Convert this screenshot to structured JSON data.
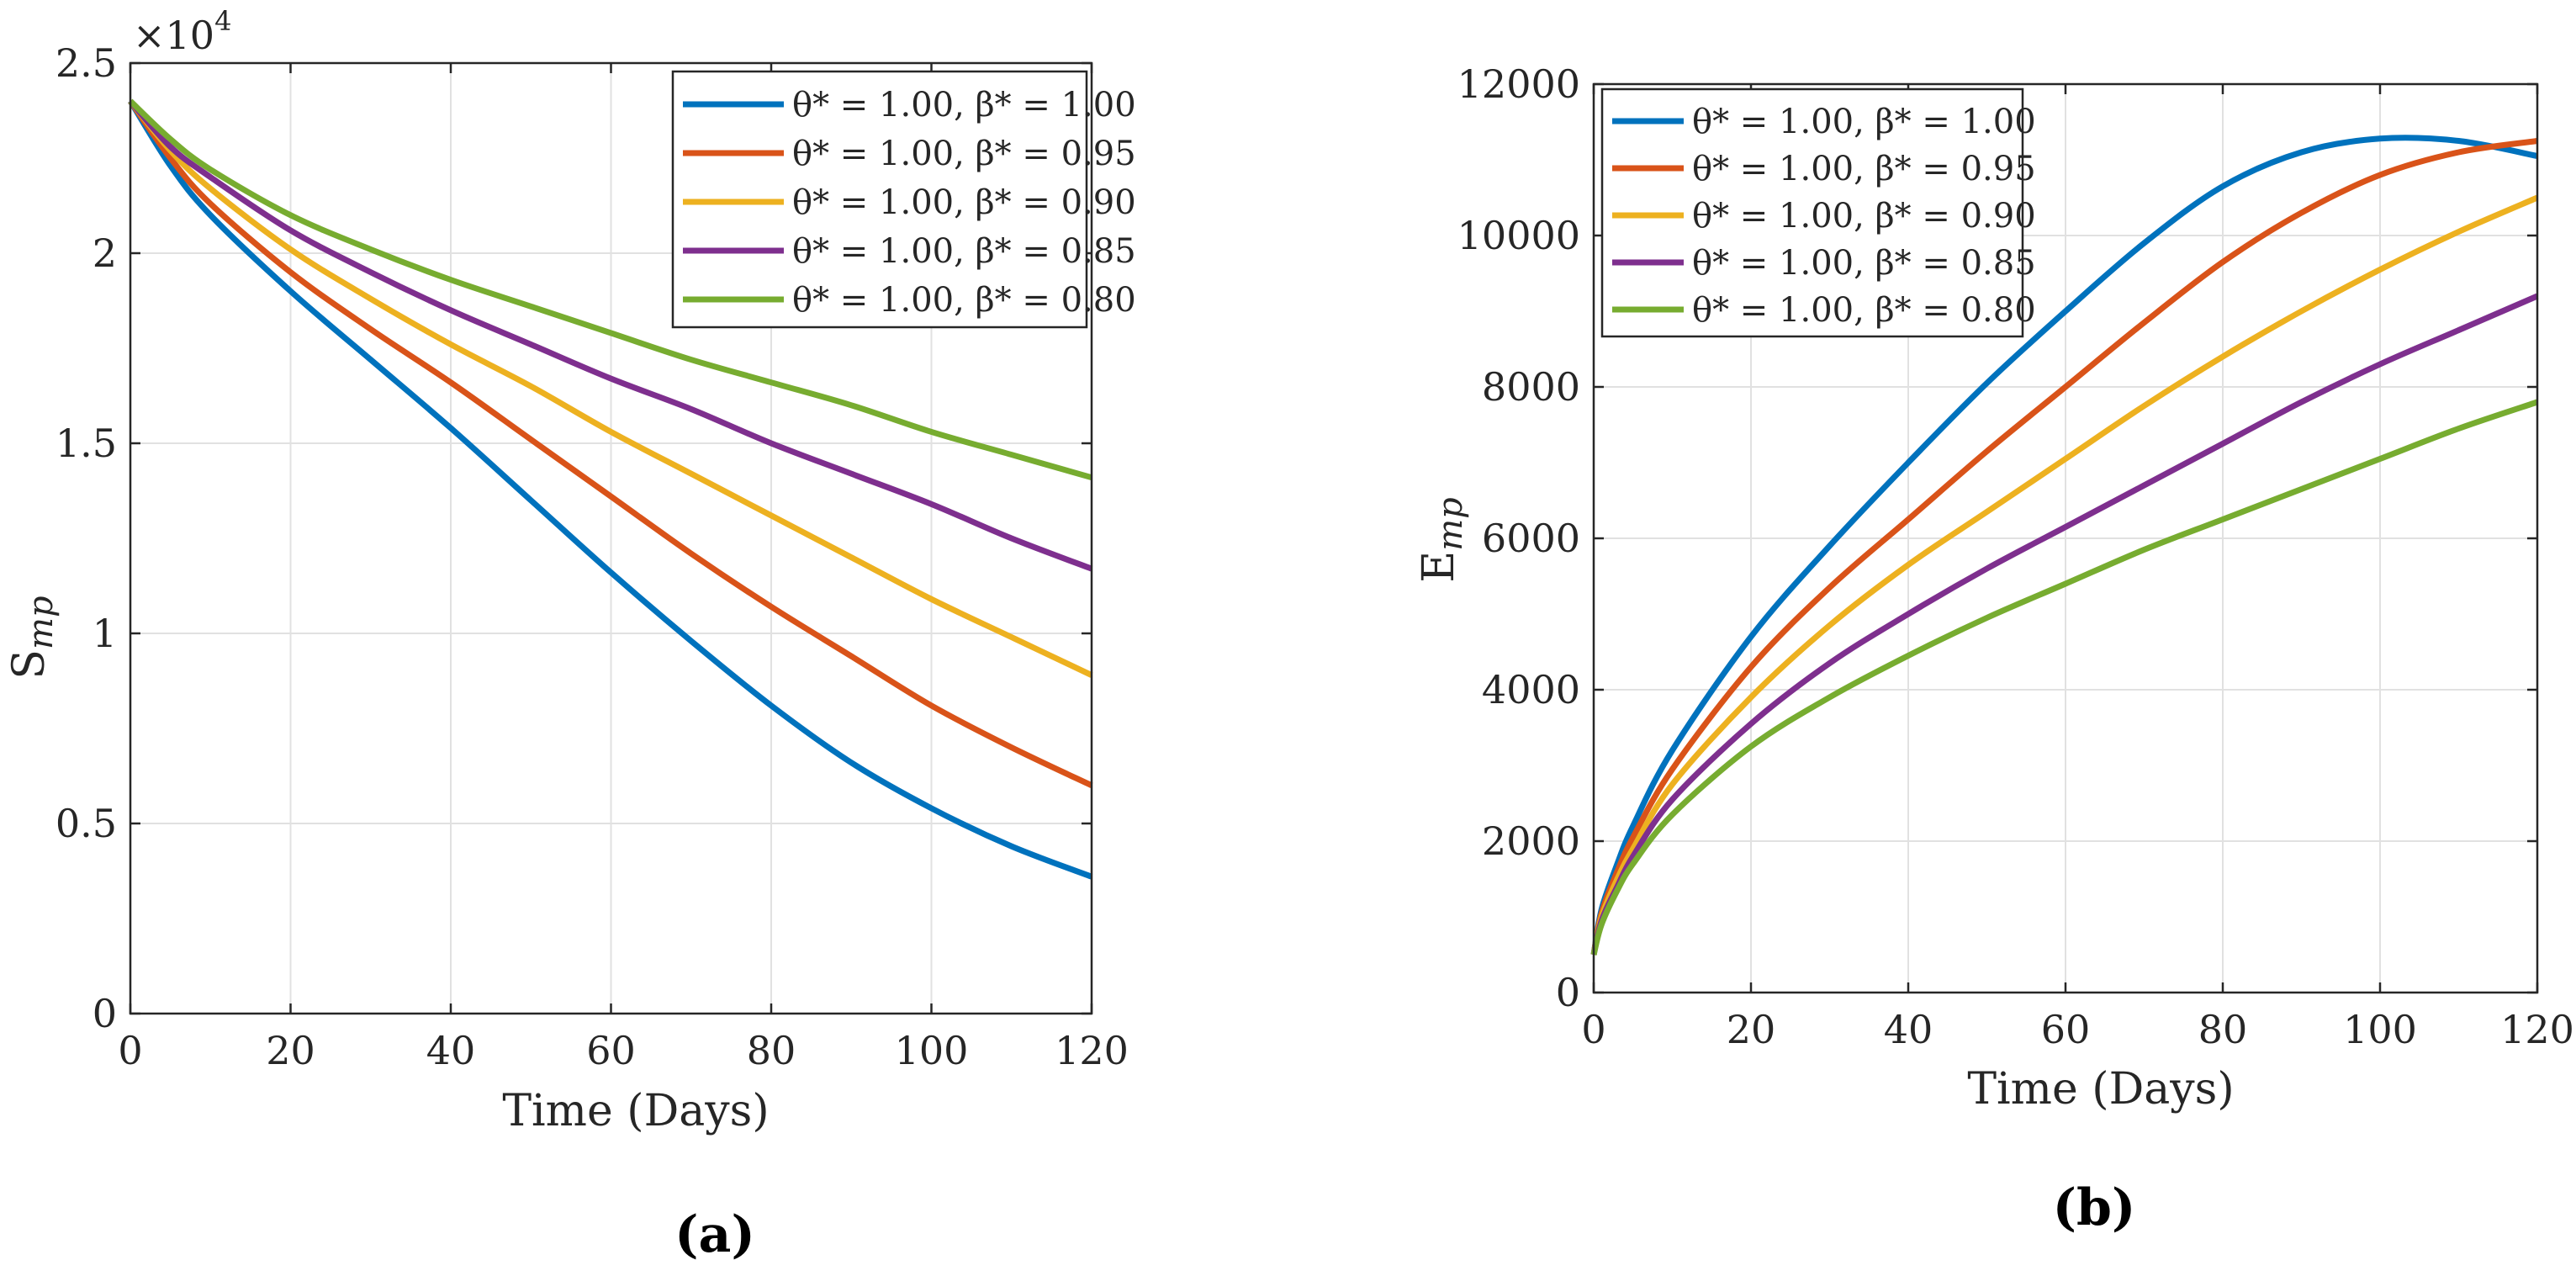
{
  "chart_data": [
    {
      "id": "a",
      "type": "line",
      "caption": "(a)",
      "xlabel": "Time (Days)",
      "ylabel": "S",
      "ylabel_sub": "mp",
      "y_multiplier": "×10",
      "y_multiplier_exp": "4",
      "xlim": [
        0,
        120
      ],
      "ylim": [
        0,
        2.5
      ],
      "xticks": [
        0,
        20,
        40,
        60,
        80,
        100,
        120
      ],
      "yticks": [
        0,
        0.5,
        1,
        1.5,
        2,
        2.5
      ],
      "ytick_labels": [
        "0",
        "0.5",
        "1",
        "1.5",
        "2",
        "2.5"
      ],
      "grid": true,
      "legend_position": "top-right",
      "x": [
        0,
        5,
        10,
        20,
        30,
        40,
        50,
        60,
        70,
        80,
        90,
        100,
        110,
        120
      ],
      "series": [
        {
          "name": "θ* = 1.00, β* = 1.00",
          "color": "#0072BD",
          "values": [
            2.4,
            2.23,
            2.1,
            1.9,
            1.72,
            1.54,
            1.35,
            1.16,
            0.98,
            0.81,
            0.66,
            0.54,
            0.44,
            0.36
          ]
        },
        {
          "name": "θ* = 1.00, β* = 0.95",
          "color": "#D95319",
          "values": [
            2.4,
            2.25,
            2.13,
            1.95,
            1.8,
            1.66,
            1.51,
            1.36,
            1.21,
            1.07,
            0.94,
            0.81,
            0.7,
            0.6
          ]
        },
        {
          "name": "θ* = 1.00, β* = 0.90",
          "color": "#EDB120",
          "values": [
            2.4,
            2.27,
            2.17,
            2.01,
            1.88,
            1.76,
            1.65,
            1.53,
            1.42,
            1.31,
            1.2,
            1.09,
            0.99,
            0.89
          ]
        },
        {
          "name": "θ* = 1.00, β* = 0.85",
          "color": "#7E2F8E",
          "values": [
            2.4,
            2.28,
            2.2,
            2.06,
            1.95,
            1.85,
            1.76,
            1.67,
            1.59,
            1.5,
            1.42,
            1.34,
            1.25,
            1.17
          ]
        },
        {
          "name": "θ* = 1.00, β* = 0.80",
          "color": "#77AC30",
          "values": [
            2.4,
            2.3,
            2.22,
            2.1,
            2.01,
            1.93,
            1.86,
            1.79,
            1.72,
            1.66,
            1.6,
            1.53,
            1.47,
            1.41
          ]
        }
      ]
    },
    {
      "id": "b",
      "type": "line",
      "caption": "(b)",
      "xlabel": "Time (Days)",
      "ylabel": "E",
      "ylabel_sub": "mp",
      "xlim": [
        0,
        120
      ],
      "ylim": [
        0,
        12000
      ],
      "xticks": [
        0,
        20,
        40,
        60,
        80,
        100,
        120
      ],
      "yticks": [
        0,
        2000,
        4000,
        6000,
        8000,
        10000,
        12000
      ],
      "ytick_labels": [
        "0",
        "2000",
        "4000",
        "6000",
        "8000",
        "10000",
        "12000"
      ],
      "grid": true,
      "legend_position": "top-left",
      "x": [
        0,
        1,
        3,
        5,
        10,
        20,
        30,
        40,
        50,
        60,
        70,
        80,
        90,
        100,
        110,
        120
      ],
      "series": [
        {
          "name": "θ* = 1.00, β* = 1.00",
          "color": "#0072BD",
          "values": [
            500,
            1100,
            1700,
            2200,
            3200,
            4700,
            5900,
            7000,
            8050,
            9000,
            9900,
            10650,
            11100,
            11280,
            11250,
            11050
          ]
        },
        {
          "name": "θ* = 1.00, β* = 0.95",
          "color": "#D95319",
          "values": [
            500,
            1050,
            1600,
            2050,
            2950,
            4300,
            5350,
            6250,
            7150,
            8000,
            8850,
            9650,
            10300,
            10800,
            11100,
            11250
          ]
        },
        {
          "name": "θ* = 1.00, β* = 0.90",
          "color": "#EDB120",
          "values": [
            500,
            1000,
            1500,
            1900,
            2750,
            3900,
            4850,
            5650,
            6350,
            7050,
            7750,
            8400,
            9000,
            9550,
            10050,
            10500
          ]
        },
        {
          "name": "θ* = 1.00, β* = 0.85",
          "color": "#7E2F8E",
          "values": [
            500,
            950,
            1400,
            1800,
            2550,
            3550,
            4350,
            5000,
            5600,
            6150,
            6700,
            7250,
            7800,
            8300,
            8750,
            9200
          ]
        },
        {
          "name": "θ* = 1.00, β* = 0.80",
          "color": "#77AC30",
          "values": [
            500,
            900,
            1350,
            1700,
            2350,
            3250,
            3900,
            4450,
            4950,
            5400,
            5850,
            6250,
            6650,
            7050,
            7450,
            7800
          ]
        }
      ]
    }
  ]
}
